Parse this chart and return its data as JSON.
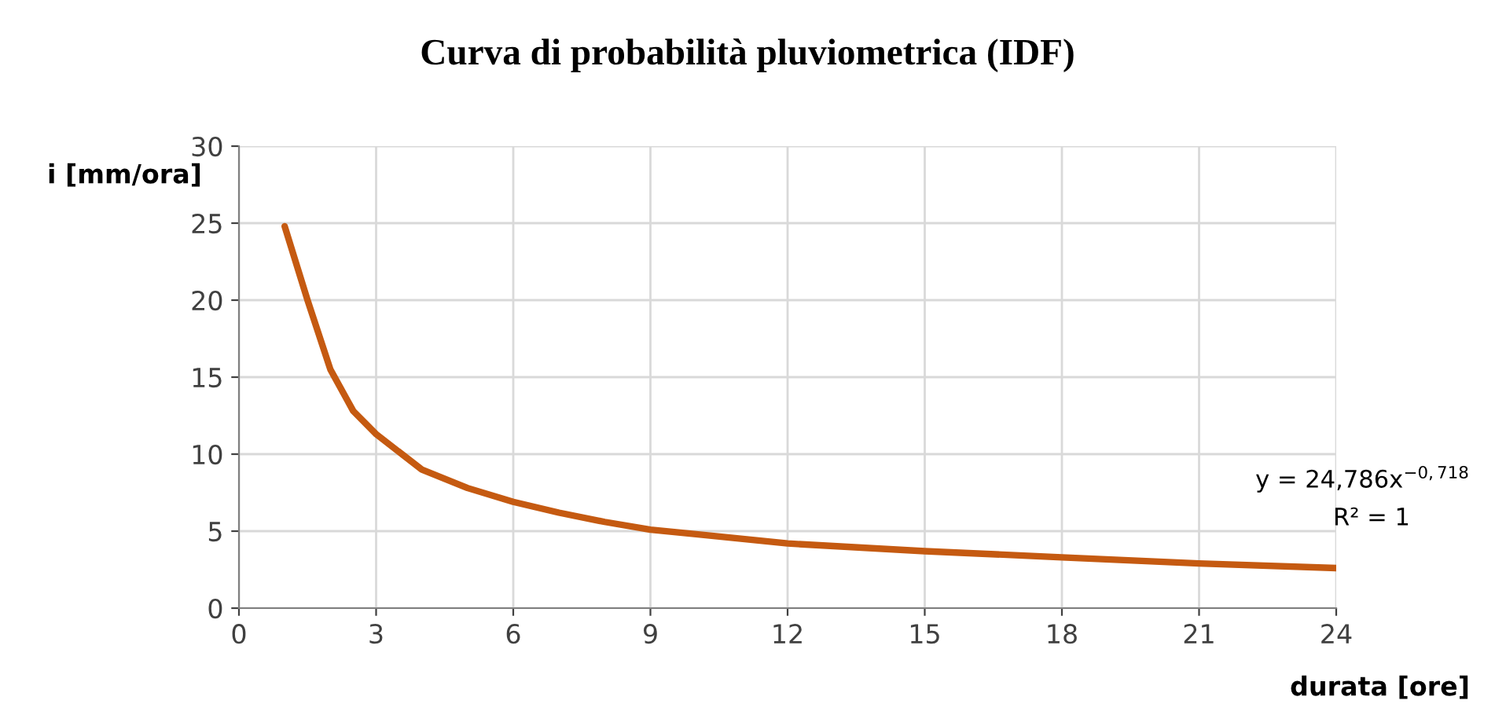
{
  "chart_data": {
    "type": "line",
    "title": "Curva di probabilità pluviometrica (IDF)",
    "xlabel": "durata [ore]",
    "ylabel": "i [mm/ora]",
    "series": [
      {
        "color": "#c55a11",
        "x": [
          1,
          1.5,
          2,
          2.5,
          3,
          4,
          5,
          6,
          7,
          8,
          9,
          10,
          12,
          15,
          18,
          21,
          24
        ],
        "values": [
          24.8,
          20,
          15.5,
          12.8,
          11.3,
          9,
          7.8,
          6.9,
          6.2,
          5.6,
          5.1,
          4.8,
          4.2,
          3.7,
          3.3,
          2.9,
          2.6
        ]
      }
    ],
    "xlim": [
      0,
      24
    ],
    "xticks": [
      0,
      3,
      6,
      9,
      12,
      15,
      18,
      21,
      24
    ],
    "ylim": [
      0,
      30
    ],
    "yticks": [
      0,
      5,
      10,
      15,
      20,
      25,
      30
    ],
    "grid": true,
    "marker": "none",
    "line_style": "solid",
    "annotations": [
      "y = 24,786x$^{−0,718}$",
      "R² = 1"
    ]
  }
}
